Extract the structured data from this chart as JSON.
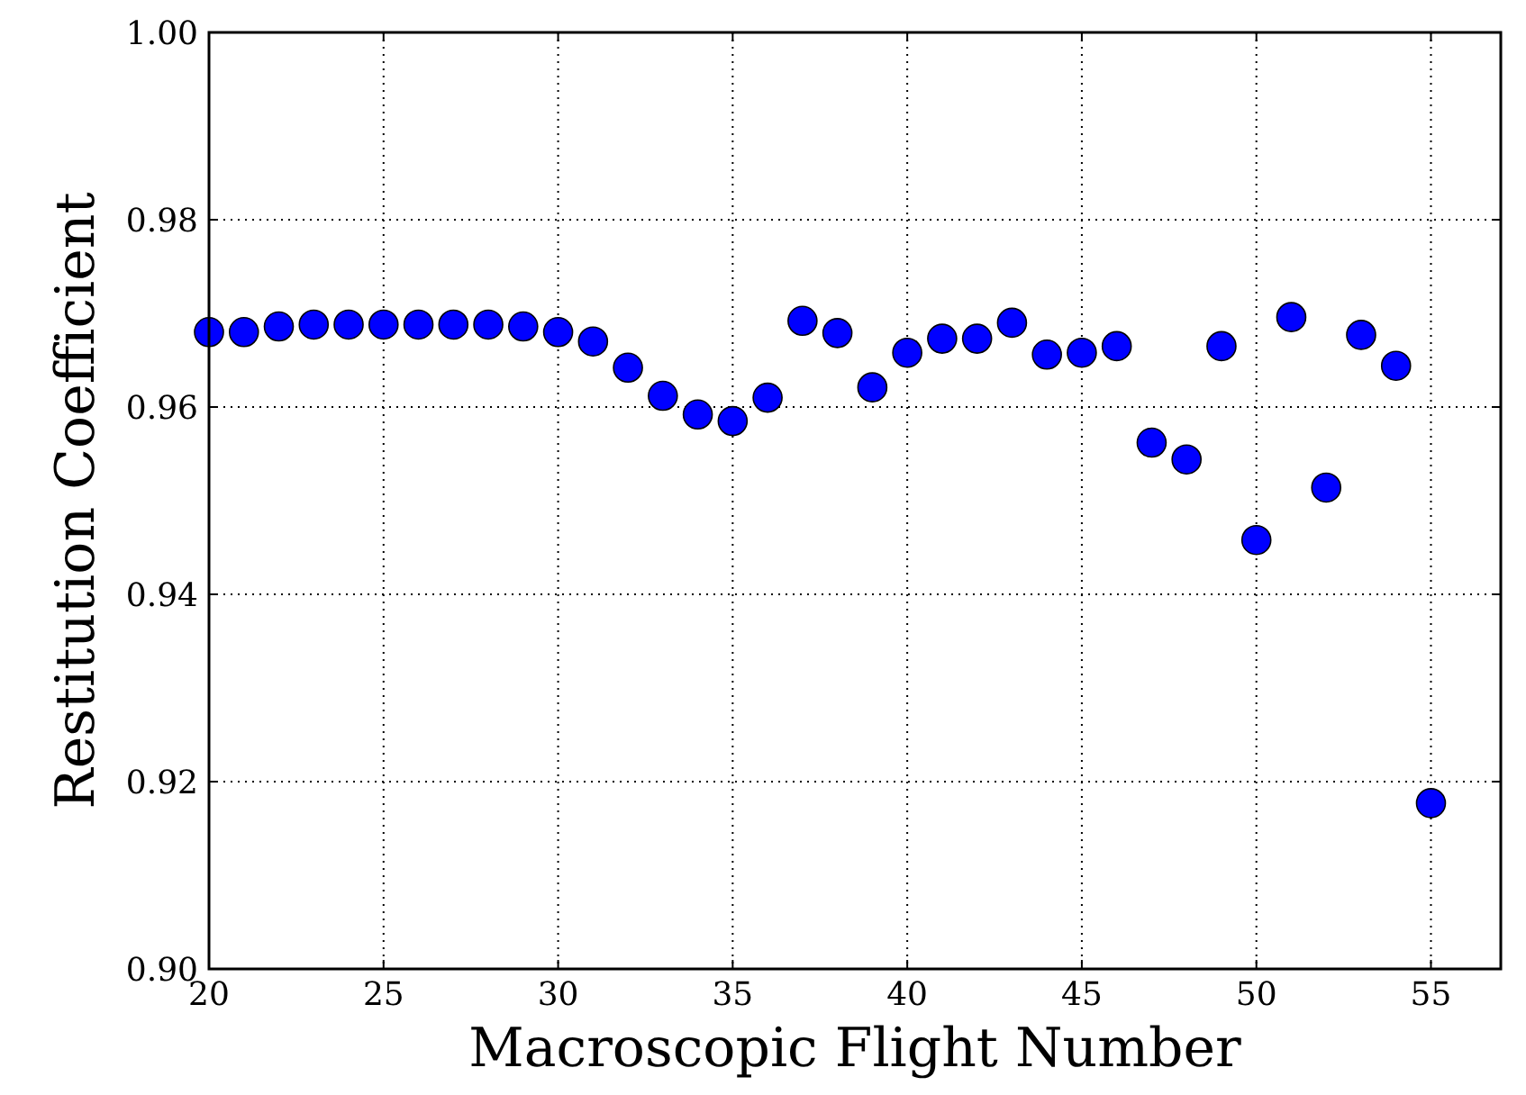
{
  "chart_data": {
    "type": "scatter",
    "xlabel": "Macroscopic Flight Number",
    "ylabel": "Restitution Coefficient",
    "x": [
      20,
      21,
      22,
      23,
      24,
      25,
      26,
      27,
      28,
      29,
      30,
      31,
      32,
      33,
      34,
      35,
      36,
      37,
      38,
      39,
      40,
      41,
      42,
      43,
      44,
      45,
      46,
      47,
      48,
      49,
      50,
      51,
      52,
      53,
      54,
      55
    ],
    "series": [
      {
        "color": "#0000ff",
        "values": [
          0.968,
          0.968,
          0.9686,
          0.9688,
          0.9688,
          0.9688,
          0.9688,
          0.9688,
          0.9688,
          0.9686,
          0.968,
          0.967,
          0.9642,
          0.9612,
          0.9592,
          0.9585,
          0.961,
          0.9692,
          0.9679,
          0.9621,
          0.9658,
          0.9673,
          0.9673,
          0.969,
          0.9656,
          0.9658,
          0.9665,
          0.9562,
          0.9544,
          0.9665,
          0.9458,
          0.9696,
          0.9514,
          0.9677,
          0.9644,
          0.9177
        ]
      }
    ],
    "xlim": [
      20,
      57
    ],
    "xticks": [
      20,
      25,
      30,
      35,
      40,
      45,
      50,
      55
    ],
    "ylim": [
      0.9,
      1.0
    ],
    "yticks": [
      {
        "value": 0.9,
        "label": "0.90"
      },
      {
        "value": 0.92,
        "label": "0.92"
      },
      {
        "value": 0.94,
        "label": "0.94"
      },
      {
        "value": 0.96,
        "label": "0.96"
      },
      {
        "value": 0.98,
        "label": "0.98"
      },
      {
        "value": 1.0,
        "label": "1.00"
      }
    ],
    "grid": true,
    "marker": "circle"
  }
}
